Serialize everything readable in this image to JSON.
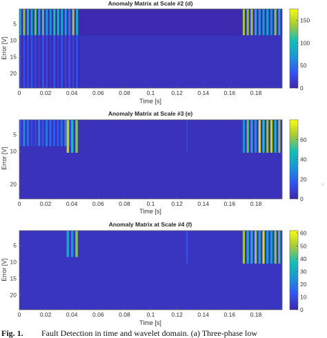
{
  "chart_data": [
    {
      "type": "heatmap",
      "title": "Anomaly Matrix at Scale #2 (d)",
      "xlabel": "",
      "ylabel": "Error [V]",
      "xlim": [
        0,
        0.2
      ],
      "ylim": [
        1,
        24
      ],
      "x_ticks": [
        "0",
        "0.02",
        "0.04",
        "0.06",
        "0.08",
        "0.1",
        "0.12",
        "0.14",
        "0.16",
        "0.18"
      ],
      "y_ticks": [
        "5",
        "10",
        "15",
        "20"
      ],
      "colorbar_ticks": [
        "0",
        "50",
        "100",
        "150"
      ],
      "clim": [
        0,
        175
      ],
      "colormap": "parula",
      "grid": false,
      "features": [
        {
          "rows": [
            1,
            8
          ],
          "x_range": [
            0.0,
            0.046
          ],
          "peak": 150,
          "label": "strong periodic stripes"
        },
        {
          "rows": [
            9,
            24
          ],
          "x_range": [
            0.0,
            0.046
          ],
          "peak": 40,
          "label": "weak stripes"
        },
        {
          "rows": [
            1,
            8
          ],
          "x_range": [
            0.17,
            0.2
          ],
          "peak": 165,
          "label": "stripes"
        },
        {
          "rows": [
            9,
            24
          ],
          "x_range": [
            0.046,
            0.2
          ],
          "peak": 10,
          "label": "background"
        }
      ]
    },
    {
      "type": "heatmap",
      "title": "Anomaly Matrix at Scale #3 (e)",
      "xlabel": "",
      "ylabel": "Error [V]",
      "xlim": [
        0,
        0.2
      ],
      "ylim": [
        1,
        24
      ],
      "x_ticks": [
        "0",
        "0.02",
        "0.04",
        "0.06",
        "0.08",
        "0.1",
        "0.12",
        "0.14",
        "0.16",
        "0.18"
      ],
      "y_ticks": [
        "5",
        "10",
        "20"
      ],
      "colorbar_ticks": [
        "0",
        "20",
        "40",
        "60"
      ],
      "clim": [
        0,
        80
      ],
      "colormap": "parula",
      "grid": false,
      "features": [
        {
          "rows": [
            1,
            8
          ],
          "x_range": [
            0.0,
            0.04
          ],
          "peak": 30,
          "label": "faint stripes"
        },
        {
          "rows": [
            1,
            10
          ],
          "x_range": [
            0.036,
            0.046
          ],
          "peak": 70,
          "label": "bright lines"
        },
        {
          "rows": [
            1,
            10
          ],
          "x_range": [
            0.17,
            0.2
          ],
          "peak": 75,
          "label": "bright lines"
        },
        {
          "rows": [
            1,
            10
          ],
          "x_range": [
            0.127,
            0.129
          ],
          "peak": 25,
          "label": "faint line"
        }
      ]
    },
    {
      "type": "heatmap",
      "title": "Anomaly Matrix at Scale #4 (f)",
      "xlabel": "Time [s]",
      "ylabel": "Error [V]",
      "xlim": [
        0,
        0.2
      ],
      "ylim": [
        1,
        24
      ],
      "x_ticks": [
        "0",
        "0.02",
        "0.04",
        "0.06",
        "0.08",
        "0.1",
        "0.12",
        "0.14",
        "0.16",
        "0.18"
      ],
      "y_ticks": [
        "5",
        "10",
        "15",
        "20"
      ],
      "colorbar_ticks": [
        "0",
        "10",
        "20",
        "30",
        "40",
        "50",
        "60"
      ],
      "clim": [
        0,
        62
      ],
      "colormap": "parula",
      "grid": false,
      "features": [
        {
          "rows": [
            1,
            8
          ],
          "x_range": [
            0.036,
            0.046
          ],
          "peak": 55,
          "label": "bright lines"
        },
        {
          "rows": [
            1,
            10
          ],
          "x_range": [
            0.17,
            0.2
          ],
          "peak": 58,
          "label": "bright lines"
        },
        {
          "rows": [
            1,
            10
          ],
          "x_range": [
            0.127,
            0.129
          ],
          "peak": 22,
          "label": "faint line"
        }
      ]
    }
  ],
  "figure_axis_labels": {
    "time_label": "Time [s]",
    "error_label": "Error [V]"
  },
  "caption": {
    "label": "Fig. 1.",
    "text": "Fault Detection in time and wavelet domain. (a) Three-phase low"
  },
  "edge_glyph": "."
}
